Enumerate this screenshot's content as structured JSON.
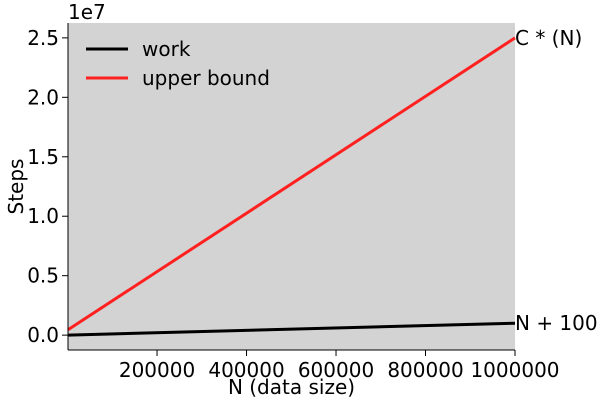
{
  "chart_data": {
    "type": "line",
    "title": "",
    "xlabel": "N (data size)",
    "ylabel": "Steps",
    "y_exponent_label": "1e7",
    "xlim": [
      1000,
      1000000
    ],
    "ylim": [
      -1250000,
      26250000
    ],
    "x_ticks": [
      200000,
      400000,
      600000,
      800000,
      1000000
    ],
    "x_tick_labels": [
      "200000",
      "400000",
      "600000",
      "800000",
      "1000000"
    ],
    "y_ticks": [
      0,
      5000000,
      10000000,
      15000000,
      20000000,
      25000000
    ],
    "y_tick_labels": [
      "0.0",
      "0.5",
      "1.0",
      "1.5",
      "2.0",
      "2.5"
    ],
    "plot_background": "#d3d3d3",
    "legend_position": "upper-left",
    "series": [
      {
        "name": "work",
        "color": "#000000",
        "x": [
          1000,
          1000000
        ],
        "y": [
          1100,
          1000100
        ]
      },
      {
        "name": "upper bound",
        "color": "#ff2020",
        "x": [
          1000,
          1000000
        ],
        "y": [
          450000,
          25000000
        ]
      }
    ],
    "annotations": [
      {
        "text": "C * (N)",
        "x": 1000000,
        "y": 25000000
      },
      {
        "text": "N + 100",
        "x": 1000000,
        "y": 1000100
      }
    ]
  }
}
